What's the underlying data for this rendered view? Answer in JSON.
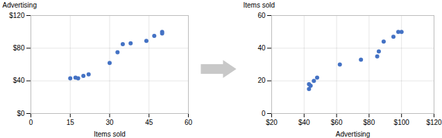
{
  "chart_data": [
    {
      "type": "scatter",
      "x": [
        15,
        17,
        18,
        20,
        22,
        30,
        33,
        35,
        38,
        44,
        47,
        50,
        50
      ],
      "values": [
        43,
        44,
        43,
        46,
        48,
        62,
        75,
        85,
        86,
        89,
        95,
        100,
        98
      ],
      "xlabel": "Items sold",
      "ylabel": "Advertising",
      "xlim": [
        0,
        60
      ],
      "ylim": [
        0,
        120
      ],
      "xticks": [
        0,
        15,
        30,
        45,
        60
      ],
      "yticks": [
        {
          "value": 0,
          "label": "$0"
        },
        {
          "value": 40,
          "label": "$40"
        },
        {
          "value": 80,
          "label": "$80"
        },
        {
          "value": 120,
          "label": "$120"
        }
      ],
      "color": "#4472C4",
      "grid": true
    },
    {
      "type": "scatter",
      "x": [
        43,
        44,
        43,
        46,
        48,
        62,
        75,
        85,
        86,
        89,
        95,
        100,
        98
      ],
      "values": [
        15,
        17,
        18,
        20,
        22,
        30,
        33,
        35,
        38,
        44,
        47,
        50,
        50
      ],
      "xlabel": "Advertising",
      "ylabel": "Items sold",
      "xlim": [
        20,
        120
      ],
      "ylim": [
        0,
        60
      ],
      "xticks": [
        {
          "value": 20,
          "label": "$20"
        },
        {
          "value": 40,
          "label": "$40"
        },
        {
          "value": 60,
          "label": "$60"
        },
        {
          "value": 80,
          "label": "$80"
        },
        {
          "value": 100,
          "label": "$100"
        },
        {
          "value": 120,
          "label": "$120"
        }
      ],
      "yticks": [
        0,
        20,
        40,
        60
      ],
      "color": "#4472C4",
      "grid": true
    }
  ]
}
